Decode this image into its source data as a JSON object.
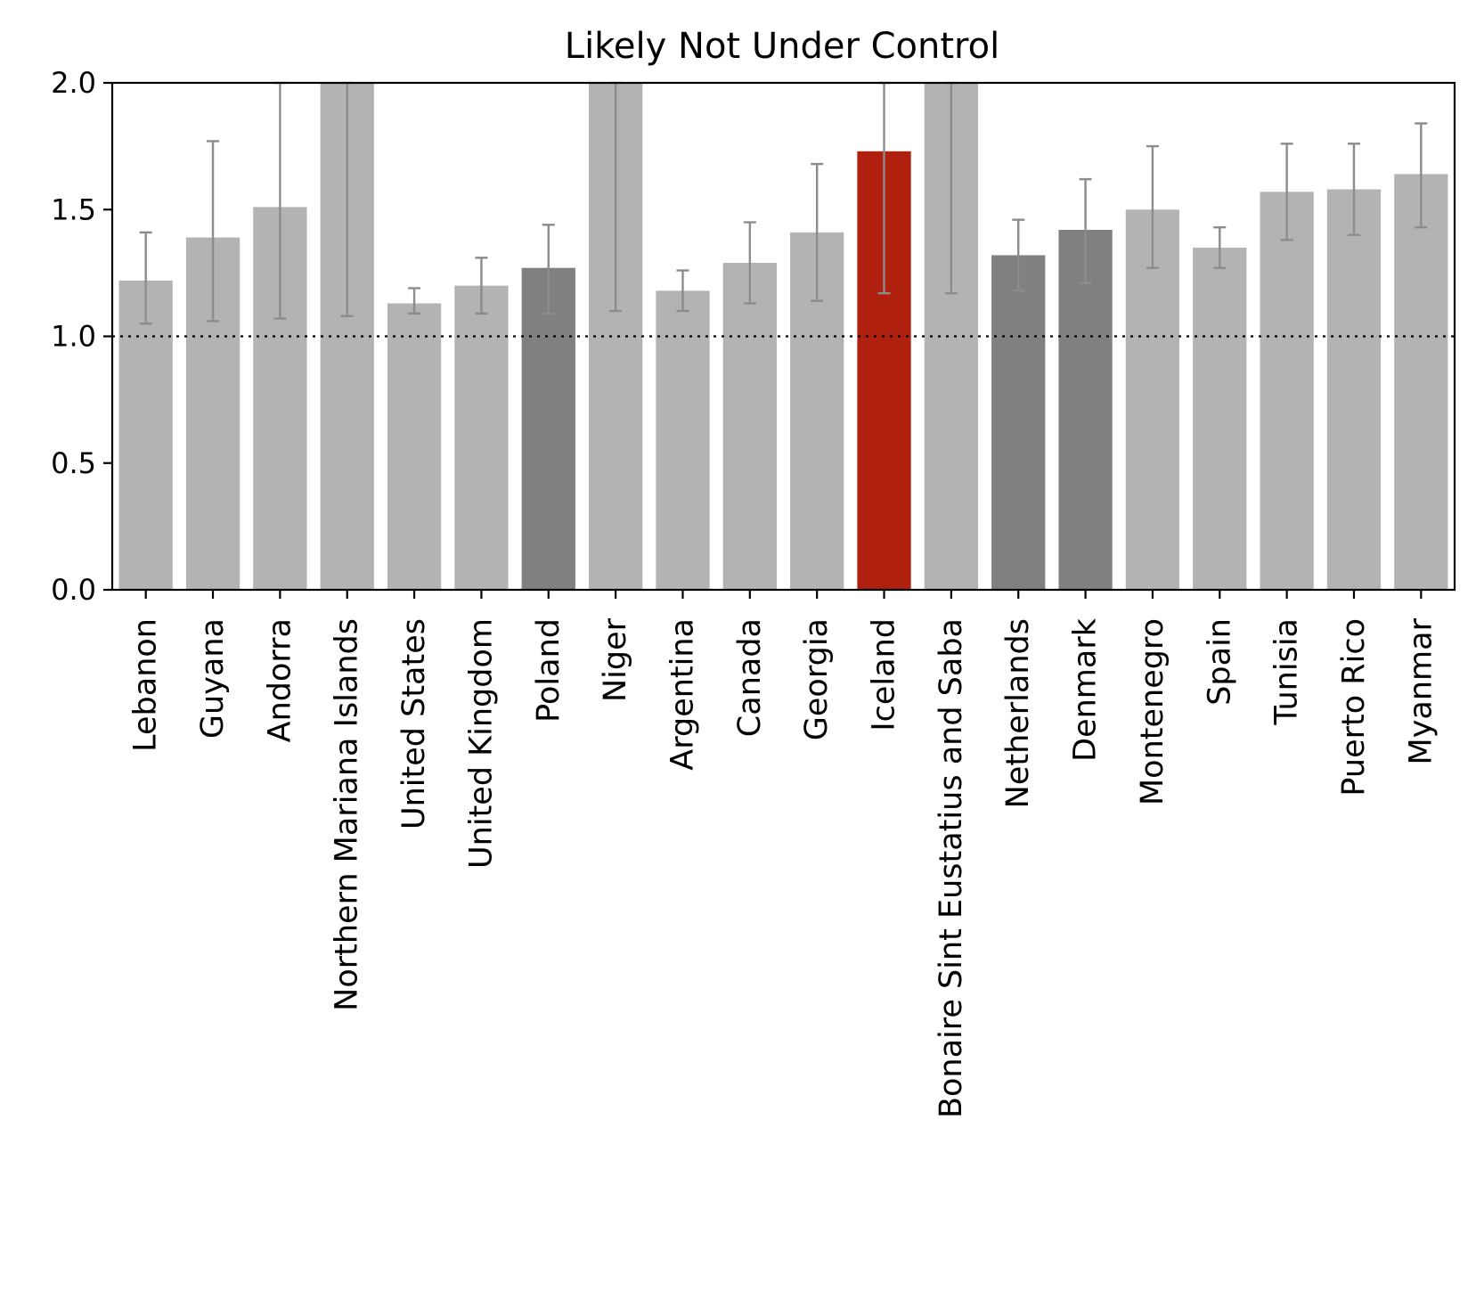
{
  "chart_data": {
    "type": "bar",
    "title": "Likely Not Under Control",
    "xlabel": "",
    "ylabel": "",
    "ylim": [
      0,
      2.0
    ],
    "yticks": [
      "0.0",
      "0.5",
      "1.0",
      "1.5",
      "2.0"
    ],
    "reference_line": 1.0,
    "grid": false,
    "legend": "none",
    "categories": [
      "Lebanon",
      "Guyana",
      "Andorra",
      "Northern Mariana Islands",
      "United States",
      "United Kingdom",
      "Poland",
      "Niger",
      "Argentina",
      "Canada",
      "Georgia",
      "Iceland",
      "Bonaire Sint Eustatius and Saba",
      "Netherlands",
      "Denmark",
      "Montenegro",
      "Spain",
      "Tunisia",
      "Puerto Rico",
      "Myanmar"
    ],
    "values": [
      1.22,
      1.39,
      1.51,
      2.0,
      1.13,
      1.2,
      1.27,
      2.0,
      1.18,
      1.29,
      1.41,
      1.73,
      2.0,
      1.32,
      1.42,
      1.5,
      1.35,
      1.57,
      1.58,
      1.64
    ],
    "error_low": [
      1.05,
      1.06,
      1.07,
      1.08,
      1.09,
      1.09,
      1.09,
      1.1,
      1.1,
      1.13,
      1.14,
      1.17,
      1.17,
      1.18,
      1.21,
      1.27,
      1.27,
      1.38,
      1.4,
      1.43
    ],
    "error_high": [
      1.41,
      1.77,
      2.0,
      2.0,
      1.19,
      1.31,
      1.44,
      2.0,
      1.26,
      1.45,
      1.68,
      2.0,
      2.0,
      1.46,
      1.62,
      1.75,
      1.43,
      1.76,
      1.76,
      1.84
    ],
    "bar_colors": [
      "#b3b3b3",
      "#b3b3b3",
      "#b3b3b3",
      "#b3b3b3",
      "#b3b3b3",
      "#b3b3b3",
      "#808080",
      "#b3b3b3",
      "#b3b3b3",
      "#b3b3b3",
      "#b3b3b3",
      "#b0200e",
      "#b3b3b3",
      "#808080",
      "#808080",
      "#b3b3b3",
      "#b3b3b3",
      "#b3b3b3",
      "#b3b3b3",
      "#b3b3b3"
    ],
    "error_color": "#8c8c8c"
  }
}
